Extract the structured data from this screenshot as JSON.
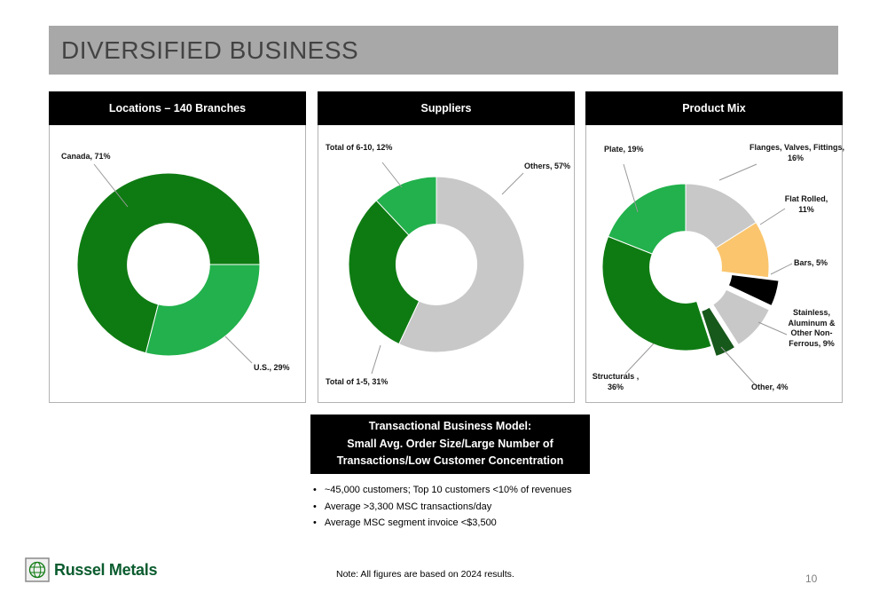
{
  "slide": {
    "title": "DIVERSIFIED BUSINESS",
    "page_number": "10",
    "footnote": "Note:  All figures are based on 2024 results.",
    "logo_text": "Russel Metals"
  },
  "model_box": {
    "line1": "Transactional Business Model:",
    "line2": "Small Avg. Order Size/Large Number of",
    "line3": "Transactions/Low Customer Concentration"
  },
  "bullets": [
    {
      "text": "~45,000 customers; Top 10 customers <10% of revenues"
    },
    {
      "text": "Average >3,300 MSC transactions/day"
    },
    {
      "text": "Average MSC segment invoice <$3,500"
    }
  ],
  "colors": {
    "dark_green": "#0e7b12",
    "bright_green": "#22b14c",
    "gray_slice": "#c8c8c8",
    "orange_slice": "#fac56d",
    "black_slice": "#000000",
    "brand_green": "#0b5c2f",
    "header_bar_gray": "#a8a8a8"
  },
  "chart_data": [
    {
      "type": "pie",
      "title": "Locations – 140 Branches",
      "donut_hole": 0.45,
      "start_angle": 194.4,
      "legend_position": "callout-labels",
      "slices": [
        {
          "label": "Canada",
          "pct": 71,
          "color": "#0e7b12",
          "display": "Canada, 71%"
        },
        {
          "label": "U.S.",
          "pct": 29,
          "color": "#22b14c",
          "display": "U.S., 29%"
        }
      ]
    },
    {
      "type": "pie",
      "title": "Suppliers",
      "donut_hole": 0.46,
      "start_angle": 205.2,
      "legend_position": "callout-labels",
      "slices": [
        {
          "label": "Total of 1-5",
          "pct": 31,
          "color": "#0e7b12",
          "display": "Total of 1-5, 31%"
        },
        {
          "label": "Total of 6-10",
          "pct": 12,
          "color": "#22b14c",
          "display": "Total of 6-10, 12%"
        },
        {
          "label": "Others",
          "pct": 57,
          "color": "#c8c8c8",
          "display": "Others, 57%"
        }
      ]
    },
    {
      "type": "pie",
      "title": "Product Mix",
      "donut_hole": 0.43,
      "start_angle": 0,
      "explode_offset": 0.13,
      "legend_position": "callout-labels",
      "slices": [
        {
          "label": "Flanges, Valves, Fittings",
          "pct": 16,
          "color": "#c8c8c8",
          "display": "Flanges, Valves, Fittings,\n16%"
        },
        {
          "label": "Flat Rolled",
          "pct": 11,
          "color": "#fac56d",
          "display": "Flat Rolled,\n11%"
        },
        {
          "label": "Bars",
          "pct": 5,
          "color": "#000000",
          "exploded": true,
          "display": "Bars, 5%"
        },
        {
          "label": "Stainless, Aluminum & Other Non-Ferrous",
          "pct": 9,
          "color": "#c8c8c8",
          "exploded": true,
          "display": "Stainless,\nAluminum &\nOther Non-\nFerrous, 9%"
        },
        {
          "label": "Other",
          "pct": 4,
          "color": "#17581b",
          "exploded": true,
          "display": "Other, 4%"
        },
        {
          "label": "Structurals",
          "pct": 36,
          "color": "#0e7b12",
          "display": "Structurals ,\n36%"
        },
        {
          "label": "Plate",
          "pct": 19,
          "color": "#22b14c",
          "display": "Plate, 19%"
        }
      ]
    }
  ]
}
